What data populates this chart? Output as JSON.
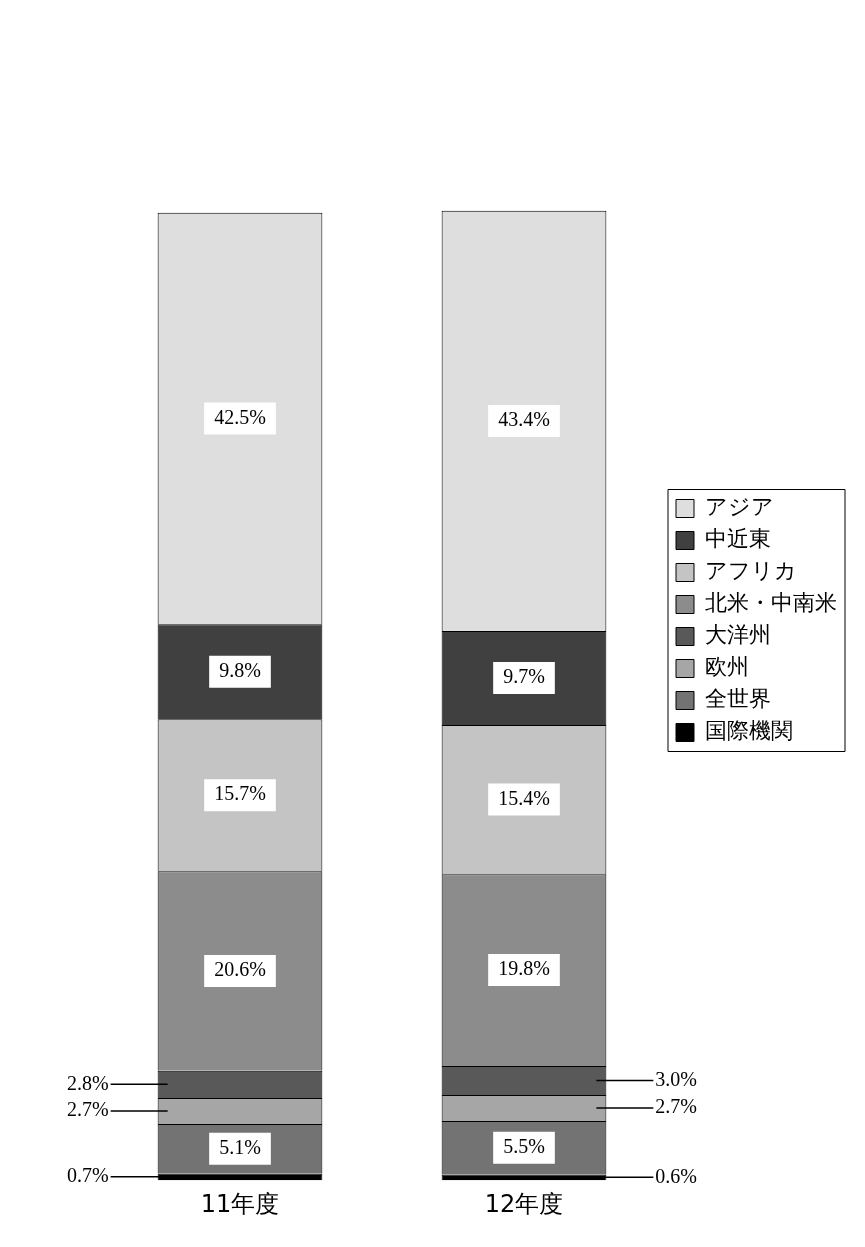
{
  "chart_data": {
    "type": "bar",
    "stacked": true,
    "categories": [
      "11年度",
      "12年度"
    ],
    "legend": "right",
    "series": [
      {
        "name": "国際機関",
        "color": "#000000",
        "values": [
          0.7,
          0.6
        ],
        "value_labels": [
          "0.7%",
          "0.6%"
        ]
      },
      {
        "name": "全世界",
        "color": "#737373",
        "values": [
          5.1,
          5.5
        ],
        "value_labels": [
          "5.1%",
          "5.5%"
        ]
      },
      {
        "name": "欧州",
        "color": "#a6a6a6",
        "values": [
          2.7,
          2.7
        ],
        "value_labels": [
          "2.7%",
          "2.7%"
        ]
      },
      {
        "name": "大洋州",
        "color": "#595959",
        "values": [
          2.8,
          3.0
        ],
        "value_labels": [
          "2.8%",
          "3.0%"
        ]
      },
      {
        "name": "北米・中南米",
        "color": "#8c8c8c",
        "values": [
          20.6,
          19.8
        ],
        "value_labels": [
          "20.6%",
          "19.8%"
        ]
      },
      {
        "name": "アフリカ",
        "color": "#c4c4c4",
        "values": [
          15.7,
          15.4
        ],
        "value_labels": [
          "15.7%",
          "15.4%"
        ]
      },
      {
        "name": "中近東",
        "color": "#404040",
        "values": [
          9.8,
          9.7
        ],
        "value_labels": [
          "9.8%",
          "9.7%"
        ]
      },
      {
        "name": "アジア",
        "color": "#dedede",
        "values": [
          42.5,
          43.4
        ],
        "value_labels": [
          "42.5%",
          "43.4%"
        ]
      }
    ]
  }
}
